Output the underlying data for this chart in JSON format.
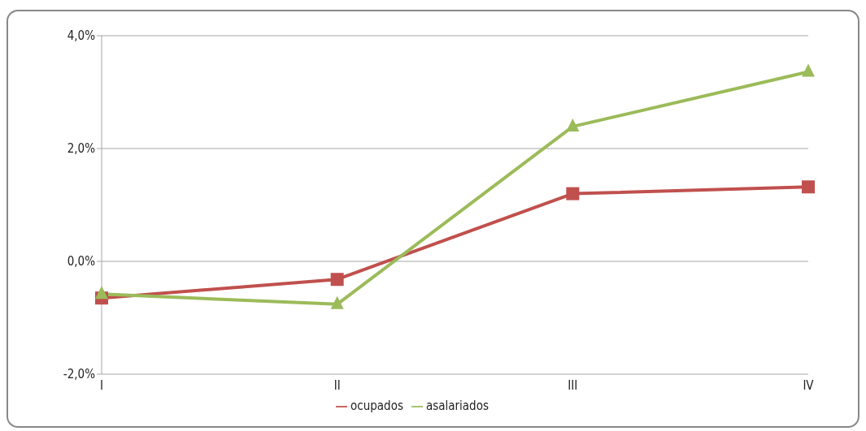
{
  "chart_data": {
    "type": "line",
    "categories": [
      "I",
      "II",
      "III",
      "IV"
    ],
    "series": [
      {
        "name": "ocupados",
        "color": "#c0504d",
        "values": [
          -0.65,
          -0.32,
          1.2,
          1.32
        ],
        "marker": "square"
      },
      {
        "name": "asalariados",
        "color": "#9bbb59",
        "values": [
          -0.58,
          -0.76,
          2.39,
          3.36
        ],
        "marker": "triangle"
      }
    ],
    "ylim": [
      -2,
      4
    ],
    "yticks": [
      {
        "value": -2,
        "label": "-2,0%"
      },
      {
        "value": 0,
        "label": "0,0%"
      },
      {
        "value": 2,
        "label": "2,0%"
      },
      {
        "value": 4,
        "label": "4,0%"
      }
    ],
    "grid": "y",
    "legend": "bottom",
    "line_style": "solid"
  }
}
